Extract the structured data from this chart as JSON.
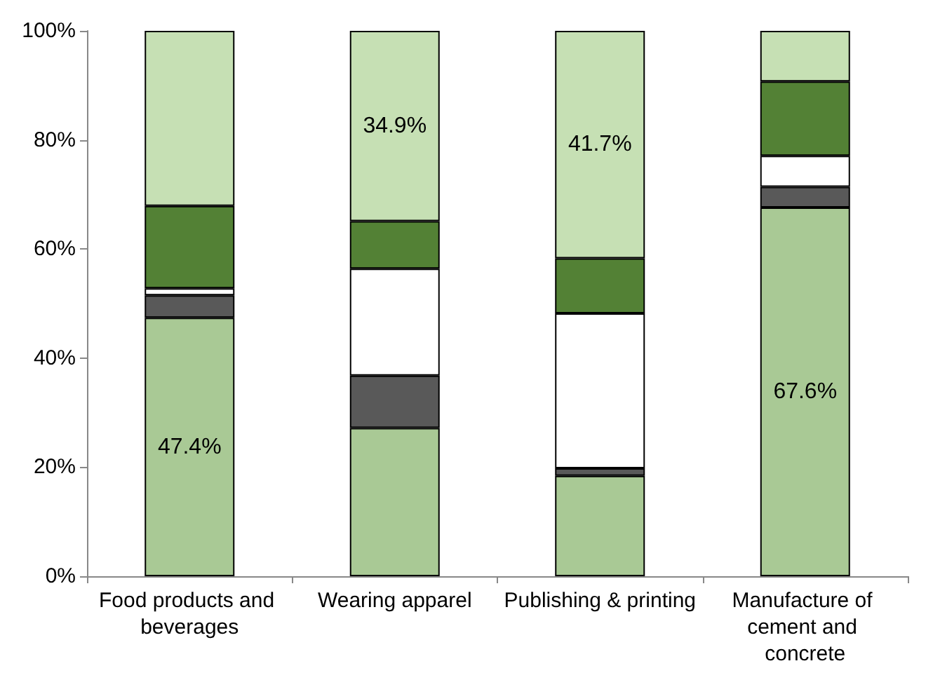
{
  "chart_data": {
    "type": "bar",
    "stacked": true,
    "categories": [
      "Food products and beverages",
      "Wearing apparel",
      "Publishing & printing",
      "Manufacture of cement and concrete"
    ],
    "series": [
      {
        "color": "#a9c995",
        "values": [
          47.4,
          27.2,
          18.4,
          67.6
        ],
        "value_labels": [
          "47.4%",
          null,
          null,
          "67.6%"
        ]
      },
      {
        "color": "#595959",
        "values": [
          4.1,
          9.6,
          1.4,
          3.8
        ]
      },
      {
        "color": "#ffffff",
        "values": [
          1.3,
          19.6,
          28.4,
          5.7
        ]
      },
      {
        "color": "#538135",
        "values": [
          15.1,
          8.7,
          10.1,
          13.6
        ]
      },
      {
        "color": "#c6e0b4",
        "values": [
          32.1,
          34.9,
          41.7,
          9.3
        ],
        "value_labels": [
          null,
          "34.9%",
          "41.7%",
          null
        ]
      }
    ],
    "ylim": [
      0,
      100
    ],
    "yticks": [
      {
        "value": 0,
        "label": "0%"
      },
      {
        "value": 20,
        "label": "20%"
      },
      {
        "value": 40,
        "label": "40%"
      },
      {
        "value": 60,
        "label": "60%"
      },
      {
        "value": 80,
        "label": "80%"
      },
      {
        "value": 100,
        "label": "100%"
      }
    ],
    "grid": false
  }
}
